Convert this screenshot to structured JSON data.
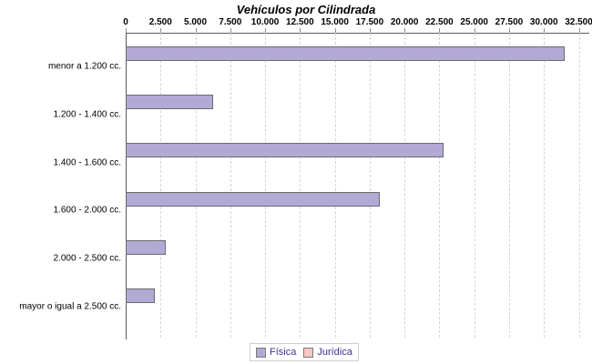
{
  "chart_data": {
    "type": "bar",
    "orientation": "horizontal",
    "title": "Vehículos por Cilindrada",
    "categories": [
      "menor a 1.200 cc.",
      "1.200 - 1.400 cc.",
      "1.400 - 1.600 cc.",
      "1.600 - 2.000 cc.",
      "2.000 - 2.500 cc.",
      "mayor o igual a 2.500 cc."
    ],
    "series": [
      {
        "name": "Física",
        "color": "#b3a9d5",
        "values": [
          31500,
          6300,
          22800,
          18200,
          2900,
          2100
        ]
      },
      {
        "name": "Jurídica",
        "color": "#f8c6c3",
        "values": [
          0,
          0,
          0,
          0,
          0,
          0
        ]
      }
    ],
    "xlim": [
      0,
      32500
    ],
    "x_ticks": [
      0,
      2500,
      5000,
      7500,
      10000,
      12500,
      15000,
      17500,
      20000,
      22500,
      25000,
      27500,
      30000,
      32500
    ],
    "x_tick_labels": [
      "0",
      "2.500",
      "5.000",
      "7.500",
      "10.000",
      "12.500",
      "15.000",
      "17.500",
      "20.000",
      "22.500",
      "25.000",
      "27.500",
      "30.000",
      "32.500"
    ],
    "grid": "vertical-dashed",
    "legend_position": "bottom"
  },
  "colors": {
    "bar_fisica": "#b3a9d5",
    "bar_juridica": "#f8c6c3",
    "bar_border": "#6b6b6b",
    "legend_text": "#3f3193",
    "axis_line": "#5a5a5a",
    "gridline": "#d4d4d4",
    "text": "#000000"
  }
}
